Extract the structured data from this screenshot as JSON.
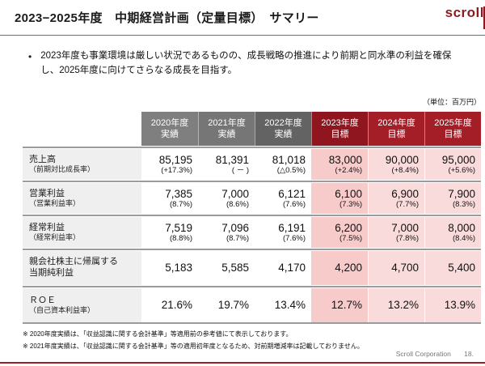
{
  "slide": {
    "title": "2023−2025年度　中期経営計画（定量目標）　サマリー",
    "logo_text": "scroll",
    "bullet_marker": "•",
    "bullet_text": "2023年度も事業環境は厳しい状況であるものの、成長戦略の推進により前期と同水準の利益を確保し、2025年度に向けてさらなる成長を目指す。",
    "unit_note": "（単位：百万円）"
  },
  "table": {
    "columns": [
      {
        "year": "2020年度",
        "type": "実績"
      },
      {
        "year": "2021年度",
        "type": "実績"
      },
      {
        "year": "2022年度",
        "type": "実績"
      },
      {
        "year": "2023年度",
        "type": "目標"
      },
      {
        "year": "2024年度",
        "type": "目標"
      },
      {
        "year": "2025年度",
        "type": "目標"
      }
    ],
    "rows": [
      {
        "label": "売上高",
        "sublabel": "（前期対比成長率）",
        "values": [
          "85,195",
          "81,391",
          "81,018",
          "83,000",
          "90,000",
          "95,000"
        ],
        "subvalues": [
          "(+17.3%)",
          "( － )",
          "(△0.5%)",
          "(+2.4%)",
          "(+8.4%)",
          "(+5.6%)"
        ]
      },
      {
        "label": "営業利益",
        "sublabel": "（営業利益率）",
        "values": [
          "7,385",
          "7,000",
          "6,121",
          "6,100",
          "6,900",
          "7,900"
        ],
        "subvalues": [
          "(8.7%)",
          "(8.6%)",
          "(7.6%)",
          "(7.3%)",
          "(7.7%)",
          "(8.3%)"
        ]
      },
      {
        "label": "経常利益",
        "sublabel": "（経常利益率）",
        "values": [
          "7,519",
          "7,096",
          "6,191",
          "6,200",
          "7,000",
          "8,000"
        ],
        "subvalues": [
          "(8.8%)",
          "(8.7%)",
          "(7.6%)",
          "(7.5%)",
          "(7.8%)",
          "(8.4%)"
        ]
      },
      {
        "label": "親会社株主に帰属する",
        "label2": "当期純利益",
        "values": [
          "5,183",
          "5,585",
          "4,170",
          "4,200",
          "4,700",
          "5,400"
        ]
      },
      {
        "label": "ＲＯＥ",
        "sublabel": "（自己資本利益率）",
        "values": [
          "21.6%",
          "19.7%",
          "13.4%",
          "12.7%",
          "13.2%",
          "13.9%"
        ]
      }
    ]
  },
  "footnotes": [
    "※ 2020年度実績は、「収益認識に関する会計基準」等適用前の参考値にて表示しております。",
    "※ 2021年度実績は、「収益認識に関する会計基準」等の適用初年度となるため、対前期増減率は記載しておりません。"
  ],
  "footer": {
    "company": "Scroll Corporation",
    "page": "18."
  },
  "colors": {
    "accent_red": "#9e1b23",
    "header_actual_gray": "#7f7f7f",
    "header_actual_gray_dark": "#636363",
    "header_target_dark_red": "#8f161e",
    "header_target_red": "#a41e28",
    "target_col_2023_bg": "#f8cbcb",
    "target_col_2024_2025_bg": "#fadbdb",
    "label_col_bg": "#efefef"
  }
}
